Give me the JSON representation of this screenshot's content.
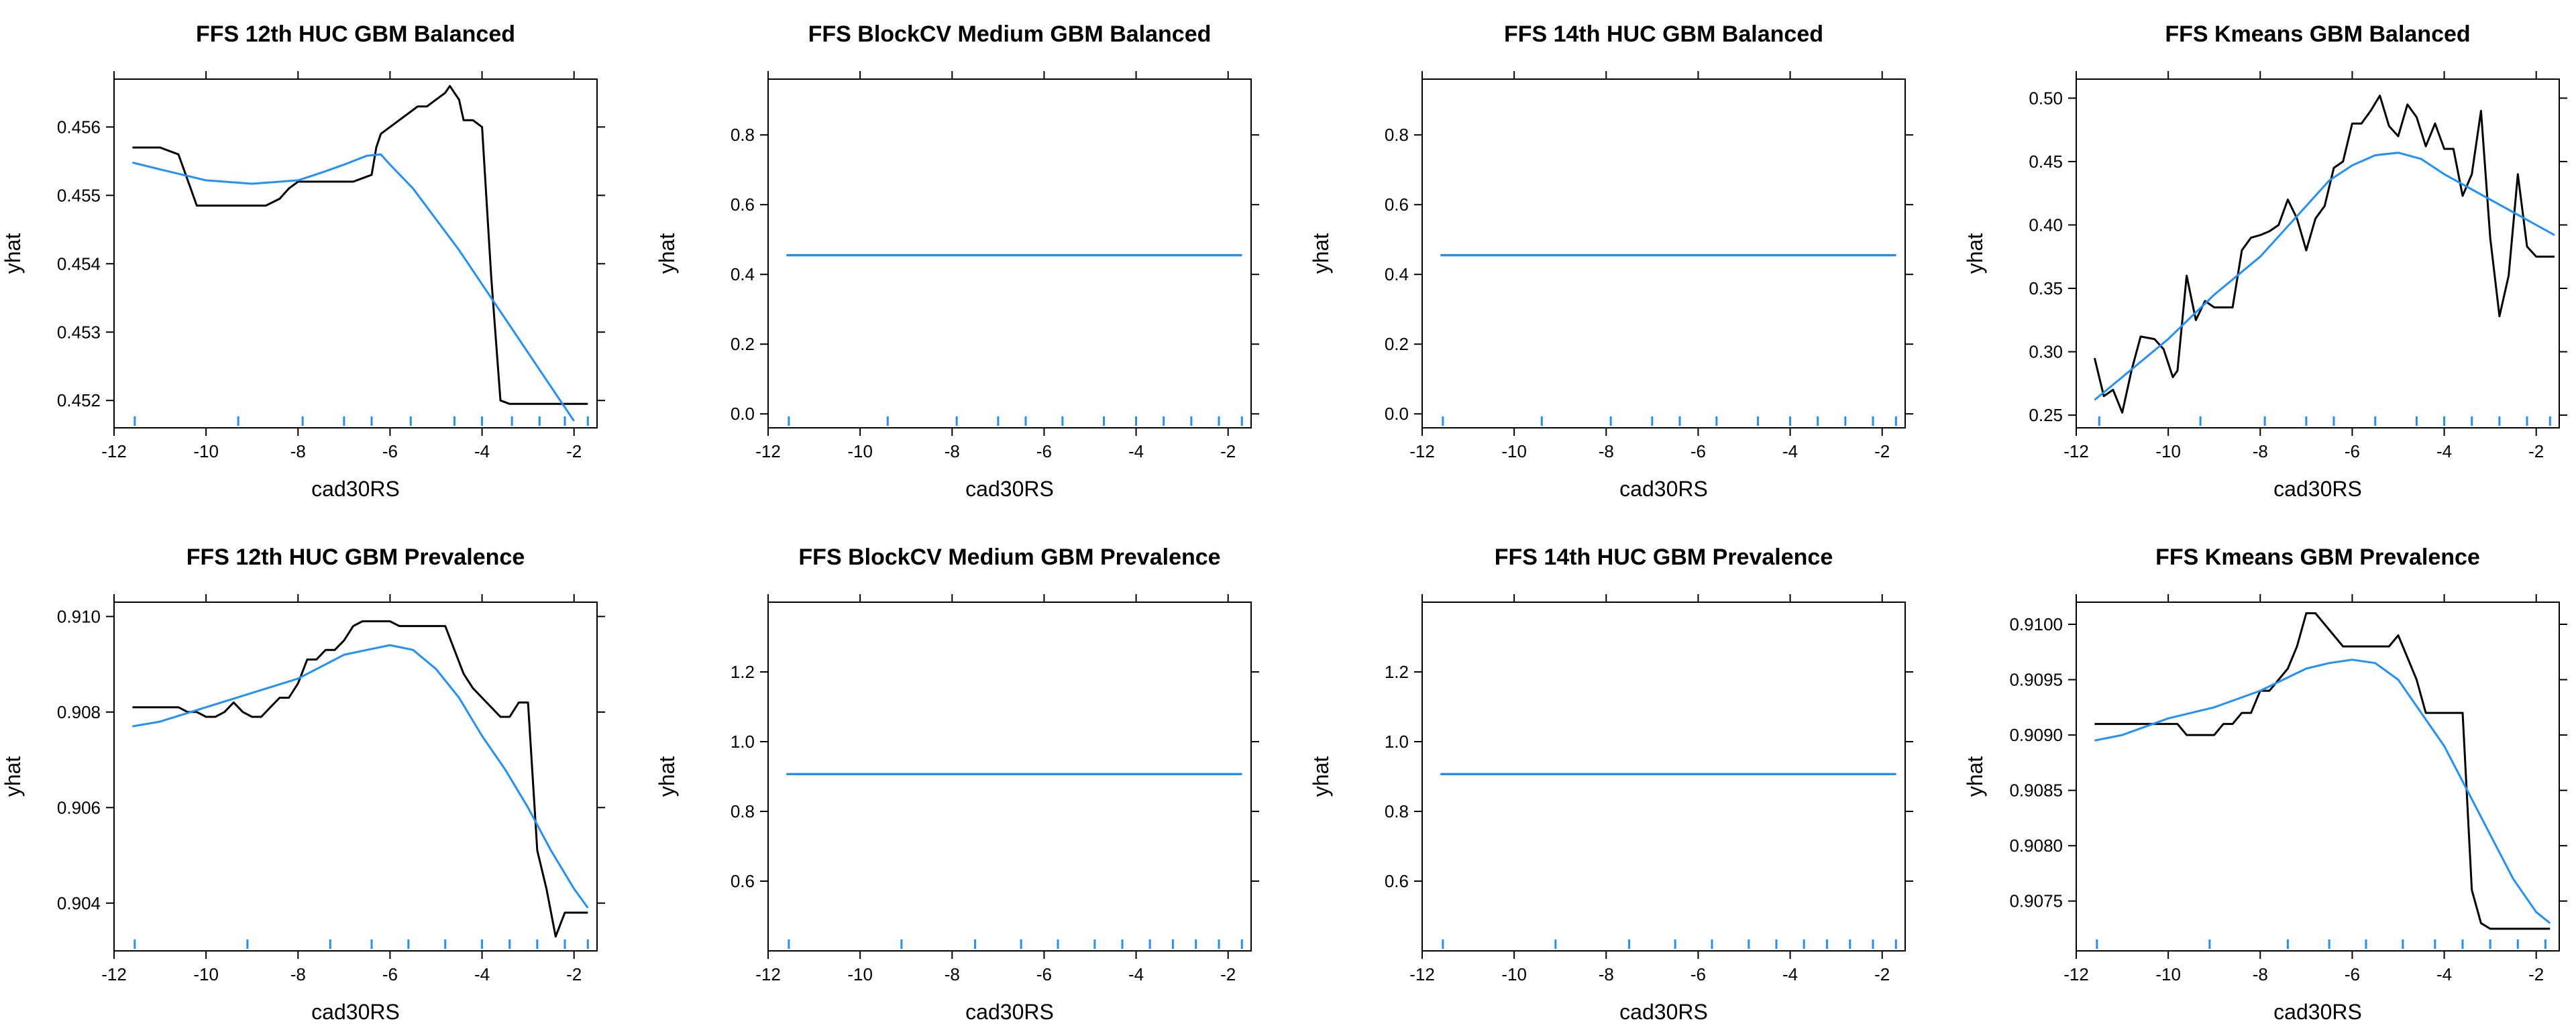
{
  "chart_data": [
    {
      "type": "line",
      "title": "FFS 12th HUC GBM Balanced",
      "xlabel": "cad30RS",
      "ylabel": "yhat",
      "xlim": [
        -12,
        -1.5
      ],
      "ylim": [
        0.4516,
        0.4567
      ],
      "xticks": [
        -12,
        -10,
        -8,
        -6,
        -4,
        -2
      ],
      "yticks": [
        0.452,
        0.453,
        0.454,
        0.455,
        0.456
      ],
      "ytick_labels": [
        "0.452",
        "0.453",
        "0.454",
        "0.455",
        "0.456"
      ],
      "rug": [
        -11.55,
        -9.3,
        -7.9,
        -7.0,
        -6.4,
        -5.55,
        -4.6,
        -4.0,
        -3.35,
        -2.75,
        -2.2,
        -1.7
      ],
      "series": [
        {
          "color": "#000000",
          "x": [
            -11.6,
            -11.0,
            -10.6,
            -10.2,
            -9.8,
            -9.4,
            -9.0,
            -8.7,
            -8.4,
            -8.2,
            -8.0,
            -7.5,
            -7.0,
            -6.8,
            -6.6,
            -6.4,
            -6.3,
            -6.2,
            -6.0,
            -5.8,
            -5.6,
            -5.4,
            -5.2,
            -5.0,
            -4.8,
            -4.7,
            -4.6,
            -4.5,
            -4.4,
            -4.2,
            -4.0,
            -3.8,
            -3.6,
            -3.4,
            -3.0,
            -2.6,
            -2.2,
            -1.7
          ],
          "y": [
            0.4557,
            0.4557,
            0.4556,
            0.45485,
            0.45485,
            0.45485,
            0.45485,
            0.45485,
            0.45495,
            0.4551,
            0.4552,
            0.4552,
            0.4552,
            0.4552,
            0.45525,
            0.4553,
            0.4557,
            0.4559,
            0.456,
            0.4561,
            0.4562,
            0.4563,
            0.4563,
            0.4564,
            0.4565,
            0.4566,
            0.4565,
            0.4564,
            0.4561,
            0.4561,
            0.456,
            0.4538,
            0.452,
            0.45195,
            0.45195,
            0.45195,
            0.45195,
            0.45195
          ]
        },
        {
          "color": "#1E90FF",
          "x": [
            -11.6,
            -11.0,
            -10.0,
            -9.0,
            -8.0,
            -7.5,
            -7.0,
            -6.5,
            -6.2,
            -6.0,
            -5.5,
            -5.0,
            -4.5,
            -4.0,
            -3.5,
            -3.0,
            -2.5,
            -2.0
          ],
          "y": [
            0.45548,
            0.45538,
            0.45522,
            0.45517,
            0.45522,
            0.45533,
            0.45545,
            0.45558,
            0.4556,
            0.45545,
            0.4551,
            0.45465,
            0.4542,
            0.4537,
            0.4532,
            0.4527,
            0.4522,
            0.4517
          ]
        }
      ]
    },
    {
      "type": "line",
      "title": "FFS BlockCV Medium GBM Balanced",
      "xlabel": "cad30RS",
      "ylabel": "yhat",
      "xlim": [
        -12,
        -1.5
      ],
      "ylim": [
        -0.04,
        0.96
      ],
      "xticks": [
        -12,
        -10,
        -8,
        -6,
        -4,
        -2
      ],
      "yticks": [
        0.0,
        0.2,
        0.4,
        0.6,
        0.8
      ],
      "ytick_labels": [
        "0.0",
        "0.2",
        "0.4",
        "0.6",
        "0.8"
      ],
      "rug": [
        -11.55,
        -9.4,
        -7.9,
        -7.0,
        -6.4,
        -5.6,
        -4.7,
        -4.0,
        -3.4,
        -2.8,
        -2.2,
        -1.7
      ],
      "series": [
        {
          "color": "#000000",
          "x": [
            -11.6,
            -1.7
          ],
          "y": [
            0.455,
            0.455
          ]
        },
        {
          "color": "#1E90FF",
          "x": [
            -11.6,
            -1.7
          ],
          "y": [
            0.455,
            0.455
          ]
        }
      ]
    },
    {
      "type": "line",
      "title": "FFS 14th HUC GBM Balanced",
      "xlabel": "cad30RS",
      "ylabel": "yhat",
      "xlim": [
        -12,
        -1.5
      ],
      "ylim": [
        -0.04,
        0.96
      ],
      "xticks": [
        -12,
        -10,
        -8,
        -6,
        -4,
        -2
      ],
      "yticks": [
        0.0,
        0.2,
        0.4,
        0.6,
        0.8
      ],
      "ytick_labels": [
        "0.0",
        "0.2",
        "0.4",
        "0.6",
        "0.8"
      ],
      "rug": [
        -11.55,
        -9.4,
        -7.9,
        -7.0,
        -6.4,
        -5.6,
        -4.7,
        -4.0,
        -3.4,
        -2.8,
        -2.2,
        -1.7
      ],
      "series": [
        {
          "color": "#000000",
          "x": [
            -11.6,
            -1.7
          ],
          "y": [
            0.455,
            0.455
          ]
        },
        {
          "color": "#1E90FF",
          "x": [
            -11.6,
            -1.7
          ],
          "y": [
            0.455,
            0.455
          ]
        }
      ]
    },
    {
      "type": "line",
      "title": "FFS Kmeans GBM Balanced",
      "xlabel": "cad30RS",
      "ylabel": "yhat",
      "xlim": [
        -12,
        -1.5
      ],
      "ylim": [
        0.24,
        0.515
      ],
      "xticks": [
        -12,
        -10,
        -8,
        -6,
        -4,
        -2
      ],
      "yticks": [
        0.25,
        0.3,
        0.35,
        0.4,
        0.45,
        0.5
      ],
      "ytick_labels": [
        "0.25",
        "0.30",
        "0.35",
        "0.40",
        "0.45",
        "0.50"
      ],
      "rug": [
        -11.5,
        -9.3,
        -7.9,
        -7.0,
        -6.4,
        -5.5,
        -4.6,
        -4.0,
        -3.4,
        -2.8,
        -2.2,
        -1.7
      ],
      "series": [
        {
          "color": "#000000",
          "x": [
            -11.6,
            -11.4,
            -11.2,
            -11.0,
            -10.8,
            -10.6,
            -10.3,
            -10.1,
            -9.9,
            -9.8,
            -9.6,
            -9.4,
            -9.2,
            -9.0,
            -8.8,
            -8.6,
            -8.4,
            -8.2,
            -8.0,
            -7.8,
            -7.6,
            -7.4,
            -7.2,
            -7.0,
            -6.8,
            -6.6,
            -6.4,
            -6.2,
            -6.0,
            -5.8,
            -5.6,
            -5.4,
            -5.2,
            -5.0,
            -4.8,
            -4.6,
            -4.4,
            -4.2,
            -4.0,
            -3.8,
            -3.6,
            -3.4,
            -3.2,
            -3.0,
            -2.8,
            -2.6,
            -2.4,
            -2.2,
            -2.0,
            -1.8,
            -1.6
          ],
          "y": [
            0.295,
            0.265,
            0.27,
            0.252,
            0.285,
            0.312,
            0.31,
            0.302,
            0.28,
            0.285,
            0.36,
            0.325,
            0.34,
            0.335,
            0.335,
            0.335,
            0.38,
            0.39,
            0.392,
            0.395,
            0.4,
            0.42,
            0.405,
            0.38,
            0.405,
            0.415,
            0.445,
            0.45,
            0.48,
            0.48,
            0.49,
            0.502,
            0.478,
            0.47,
            0.495,
            0.485,
            0.462,
            0.48,
            0.46,
            0.46,
            0.423,
            0.44,
            0.49,
            0.39,
            0.328,
            0.36,
            0.44,
            0.383,
            0.375,
            0.375,
            0.375
          ]
        },
        {
          "color": "#1E90FF",
          "x": [
            -11.6,
            -11.0,
            -10.0,
            -9.0,
            -8.0,
            -7.0,
            -6.5,
            -6.0,
            -5.5,
            -5.0,
            -4.5,
            -4.0,
            -3.5,
            -3.0,
            -2.5,
            -2.0,
            -1.6
          ],
          "y": [
            0.262,
            0.28,
            0.31,
            0.345,
            0.375,
            0.415,
            0.435,
            0.447,
            0.455,
            0.457,
            0.452,
            0.44,
            0.43,
            0.42,
            0.41,
            0.4,
            0.392
          ]
        }
      ]
    },
    {
      "type": "line",
      "title": "FFS 12th HUC GBM Prevalence",
      "xlabel": "cad30RS",
      "ylabel": "yhat",
      "xlim": [
        -12,
        -1.5
      ],
      "ylim": [
        0.903,
        0.9103
      ],
      "xticks": [
        -12,
        -10,
        -8,
        -6,
        -4,
        -2
      ],
      "yticks": [
        0.904,
        0.906,
        0.908,
        0.91
      ],
      "ytick_labels": [
        "0.904",
        "0.906",
        "0.908",
        "0.910"
      ],
      "rug": [
        -11.55,
        -9.1,
        -7.3,
        -6.4,
        -5.6,
        -4.8,
        -4.0,
        -3.4,
        -2.8,
        -2.2,
        -1.7
      ],
      "series": [
        {
          "color": "#000000",
          "x": [
            -11.6,
            -11.0,
            -10.6,
            -10.4,
            -10.2,
            -10.0,
            -9.8,
            -9.6,
            -9.4,
            -9.2,
            -9.0,
            -8.8,
            -8.6,
            -8.4,
            -8.2,
            -8.0,
            -7.8,
            -7.6,
            -7.4,
            -7.2,
            -7.0,
            -6.8,
            -6.6,
            -6.4,
            -6.2,
            -6.0,
            -5.8,
            -5.6,
            -5.4,
            -5.2,
            -5.0,
            -4.8,
            -4.6,
            -4.4,
            -4.2,
            -4.0,
            -3.8,
            -3.6,
            -3.4,
            -3.2,
            -3.0,
            -2.8,
            -2.6,
            -2.4,
            -2.2,
            -2.0,
            -1.7
          ],
          "y": [
            0.9081,
            0.9081,
            0.9081,
            0.908,
            0.908,
            0.9079,
            0.9079,
            0.908,
            0.9082,
            0.908,
            0.9079,
            0.9079,
            0.9081,
            0.9083,
            0.9083,
            0.9086,
            0.9091,
            0.9091,
            0.9093,
            0.9093,
            0.9095,
            0.9098,
            0.9099,
            0.9099,
            0.9099,
            0.9099,
            0.9098,
            0.9098,
            0.9098,
            0.9098,
            0.9098,
            0.9098,
            0.9093,
            0.9088,
            0.9085,
            0.9083,
            0.9081,
            0.9079,
            0.9079,
            0.9082,
            0.9082,
            0.9051,
            0.9043,
            0.9033,
            0.9038,
            0.9038,
            0.9038
          ]
        },
        {
          "color": "#1E90FF",
          "x": [
            -11.6,
            -11.0,
            -10.0,
            -9.0,
            -8.0,
            -7.0,
            -6.5,
            -6.0,
            -5.5,
            -5.0,
            -4.5,
            -4.0,
            -3.5,
            -3.0,
            -2.5,
            -2.0,
            -1.7
          ],
          "y": [
            0.9077,
            0.9078,
            0.9081,
            0.9084,
            0.9087,
            0.9092,
            0.9093,
            0.9094,
            0.9093,
            0.9089,
            0.9083,
            0.9075,
            0.9068,
            0.906,
            0.9051,
            0.9043,
            0.9039
          ]
        }
      ]
    },
    {
      "type": "line",
      "title": "FFS BlockCV Medium GBM Prevalence",
      "xlabel": "cad30RS",
      "ylabel": "yhat",
      "xlim": [
        -12,
        -1.5
      ],
      "ylim": [
        0.4,
        1.4
      ],
      "xticks": [
        -12,
        -10,
        -8,
        -6,
        -4,
        -2
      ],
      "yticks": [
        0.6,
        0.8,
        1.0,
        1.2
      ],
      "ytick_labels": [
        "0.6",
        "0.8",
        "1.0",
        "1.2"
      ],
      "rug": [
        -11.55,
        -9.1,
        -7.5,
        -6.5,
        -5.7,
        -4.9,
        -4.3,
        -3.7,
        -3.2,
        -2.7,
        -2.2,
        -1.7
      ],
      "series": [
        {
          "color": "#000000",
          "x": [
            -11.6,
            -1.7
          ],
          "y": [
            0.907,
            0.907
          ]
        },
        {
          "color": "#1E90FF",
          "x": [
            -11.6,
            -1.7
          ],
          "y": [
            0.907,
            0.907
          ]
        }
      ]
    },
    {
      "type": "line",
      "title": "FFS 14th HUC GBM Prevalence",
      "xlabel": "cad30RS",
      "ylabel": "yhat",
      "xlim": [
        -12,
        -1.5
      ],
      "ylim": [
        0.4,
        1.4
      ],
      "xticks": [
        -12,
        -10,
        -8,
        -6,
        -4,
        -2
      ],
      "yticks": [
        0.6,
        0.8,
        1.0,
        1.2
      ],
      "ytick_labels": [
        "0.6",
        "0.8",
        "1.0",
        "1.2"
      ],
      "rug": [
        -11.55,
        -9.1,
        -7.5,
        -6.5,
        -5.7,
        -4.9,
        -4.3,
        -3.7,
        -3.2,
        -2.7,
        -2.2,
        -1.7
      ],
      "series": [
        {
          "color": "#000000",
          "x": [
            -11.6,
            -1.7
          ],
          "y": [
            0.907,
            0.907
          ]
        },
        {
          "color": "#1E90FF",
          "x": [
            -11.6,
            -1.7
          ],
          "y": [
            0.907,
            0.907
          ]
        }
      ]
    },
    {
      "type": "line",
      "title": "FFS Kmeans GBM Prevalence",
      "xlabel": "cad30RS",
      "ylabel": "yhat",
      "xlim": [
        -12,
        -1.5
      ],
      "ylim": [
        0.90705,
        0.9102
      ],
      "xticks": [
        -12,
        -10,
        -8,
        -6,
        -4,
        -2
      ],
      "yticks": [
        0.9075,
        0.908,
        0.9085,
        0.909,
        0.9095,
        0.91
      ],
      "ytick_labels": [
        "0.9075",
        "0.9080",
        "0.9085",
        "0.9090",
        "0.9095",
        "0.9100"
      ],
      "rug": [
        -11.55,
        -9.1,
        -7.4,
        -6.5,
        -5.7,
        -4.9,
        -4.2,
        -3.6,
        -3.0,
        -2.4,
        -1.8
      ],
      "series": [
        {
          "color": "#000000",
          "x": [
            -11.6,
            -11.0,
            -10.5,
            -10.0,
            -9.8,
            -9.6,
            -9.4,
            -9.2,
            -9.0,
            -8.8,
            -8.6,
            -8.4,
            -8.2,
            -8.0,
            -7.8,
            -7.6,
            -7.4,
            -7.2,
            -7.0,
            -6.8,
            -6.6,
            -6.4,
            -6.2,
            -6.0,
            -5.8,
            -5.6,
            -5.4,
            -5.2,
            -5.0,
            -4.8,
            -4.6,
            -4.4,
            -4.2,
            -4.0,
            -3.8,
            -3.6,
            -3.4,
            -3.2,
            -3.0,
            -2.8,
            -2.6,
            -2.4,
            -2.2,
            -2.0,
            -1.7
          ],
          "y": [
            0.9091,
            0.9091,
            0.9091,
            0.9091,
            0.9091,
            0.909,
            0.909,
            0.909,
            0.909,
            0.9091,
            0.9091,
            0.9092,
            0.9092,
            0.9094,
            0.9094,
            0.9095,
            0.9096,
            0.9098,
            0.9101,
            0.9101,
            0.91,
            0.9099,
            0.9098,
            0.9098,
            0.9098,
            0.9098,
            0.9098,
            0.9098,
            0.9099,
            0.9097,
            0.9095,
            0.9092,
            0.9092,
            0.9092,
            0.9092,
            0.9092,
            0.9076,
            0.9073,
            0.90725,
            0.90725,
            0.90725,
            0.90725,
            0.90725,
            0.90725,
            0.90725
          ]
        },
        {
          "color": "#1E90FF",
          "x": [
            -11.6,
            -11.0,
            -10.0,
            -9.0,
            -8.0,
            -7.0,
            -6.5,
            -6.0,
            -5.5,
            -5.0,
            -4.5,
            -4.0,
            -3.5,
            -3.0,
            -2.5,
            -2.0,
            -1.7
          ],
          "y": [
            0.90895,
            0.909,
            0.90915,
            0.90925,
            0.9094,
            0.9096,
            0.90965,
            0.90968,
            0.90965,
            0.9095,
            0.9092,
            0.9089,
            0.9085,
            0.9081,
            0.9077,
            0.9074,
            0.9073
          ]
        }
      ]
    }
  ]
}
